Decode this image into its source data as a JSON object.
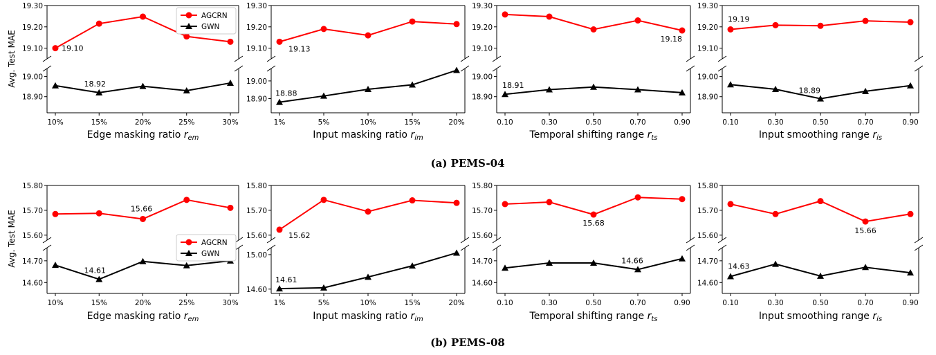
{
  "colors": {
    "agcrn": "#ff0000",
    "gwn": "#000000"
  },
  "legend": {
    "items": [
      "AGCRN",
      "GWN"
    ]
  },
  "ylabel": "Avg. Test MAE",
  "groups": [
    {
      "caption": "(a) PEMS-04"
    },
    {
      "caption": "(b) PEMS-08"
    }
  ],
  "chart_data": [
    {
      "type": "line",
      "group": 0,
      "col": 0,
      "xlabel": "Edge masking ratio r_em",
      "xlabel_main": "Edge masking ratio ",
      "xlabel_sub": "em",
      "categories": [
        "10%",
        "15%",
        "20%",
        "25%",
        "30%"
      ],
      "series": [
        {
          "name": "AGCRN",
          "values": [
            19.1,
            19.215,
            19.248,
            19.155,
            19.13
          ]
        },
        {
          "name": "GWN",
          "values": [
            18.955,
            18.92,
            18.952,
            18.93,
            18.968
          ]
        }
      ],
      "upper_ylim": [
        19.05,
        19.3
      ],
      "upper_ticks": [
        "19.10",
        "19.20",
        "19.30"
      ],
      "lower_ylim": [
        18.82,
        19.04
      ],
      "lower_ticks": [
        "18.90",
        "19.00"
      ],
      "annotations": [
        {
          "text": "19.10",
          "series": 0,
          "index": 0,
          "anchor": "start",
          "dx": 9,
          "dy": 4
        },
        {
          "text": "18.92",
          "series": 1,
          "index": 1,
          "anchor": "middle",
          "dx": -6,
          "dy": -9
        }
      ],
      "legend": "top-right"
    },
    {
      "type": "line",
      "group": 0,
      "col": 1,
      "xlabel": "Input masking ratio r_im",
      "xlabel_main": "Input masking ratio ",
      "xlabel_sub": "im",
      "categories": [
        "1%",
        "5%",
        "10%",
        "15%",
        "20%"
      ],
      "series": [
        {
          "name": "AGCRN",
          "values": [
            19.13,
            19.19,
            19.16,
            19.225,
            19.213
          ]
        },
        {
          "name": "GWN",
          "values": [
            18.88,
            18.915,
            18.953,
            18.978,
            19.06
          ]
        }
      ],
      "upper_ylim": [
        19.05,
        19.3
      ],
      "upper_ticks": [
        "19.10",
        "19.20",
        "19.30"
      ],
      "lower_ylim": [
        18.82,
        19.07
      ],
      "lower_ticks": [
        "18.90",
        "19.00"
      ],
      "annotations": [
        {
          "text": "19.13",
          "series": 0,
          "index": 0,
          "anchor": "start",
          "dx": 13,
          "dy": 14
        },
        {
          "text": "18.88",
          "series": 1,
          "index": 0,
          "anchor": "start",
          "dx": -6,
          "dy": -9
        }
      ]
    },
    {
      "type": "line",
      "group": 0,
      "col": 2,
      "xlabel": "Temporal shifting range r_ts",
      "xlabel_main": "Temporal shifting range ",
      "xlabel_sub": "ts",
      "categories": [
        "0.10",
        "0.30",
        "0.50",
        "0.70",
        "0.90"
      ],
      "series": [
        {
          "name": "AGCRN",
          "values": [
            19.258,
            19.248,
            19.188,
            19.23,
            19.183
          ]
        },
        {
          "name": "GWN",
          "values": [
            18.912,
            18.935,
            18.948,
            18.935,
            18.92
          ]
        }
      ],
      "upper_ylim": [
        19.05,
        19.3
      ],
      "upper_ticks": [
        "19.10",
        "19.20",
        "19.30"
      ],
      "lower_ylim": [
        18.82,
        19.04
      ],
      "lower_ticks": [
        "18.90",
        "19.00"
      ],
      "annotations": [
        {
          "text": "19.18",
          "series": 0,
          "index": 4,
          "anchor": "end",
          "dx": 0,
          "dy": 16
        },
        {
          "text": "18.91",
          "series": 1,
          "index": 0,
          "anchor": "start",
          "dx": -4,
          "dy": -9
        }
      ]
    },
    {
      "type": "line",
      "group": 0,
      "col": 3,
      "xlabel": "Input smoothing range r_is",
      "xlabel_main": "Input smoothing range ",
      "xlabel_sub": "is",
      "categories": [
        "0.10",
        "0.30",
        "0.50",
        "0.70",
        "0.90"
      ],
      "series": [
        {
          "name": "AGCRN",
          "values": [
            19.188,
            19.208,
            19.205,
            19.228,
            19.222
          ]
        },
        {
          "name": "GWN",
          "values": [
            18.96,
            18.937,
            18.89,
            18.927,
            18.955
          ]
        }
      ],
      "upper_ylim": [
        19.05,
        19.3
      ],
      "upper_ticks": [
        "19.10",
        "19.20",
        "19.30"
      ],
      "lower_ylim": [
        18.82,
        19.04
      ],
      "lower_ticks": [
        "18.90",
        "19.00"
      ],
      "annotations": [
        {
          "text": "19.19",
          "series": 0,
          "index": 0,
          "anchor": "start",
          "dx": -4,
          "dy": -11
        },
        {
          "text": "18.89",
          "series": 1,
          "index": 2,
          "anchor": "end",
          "dx": 0,
          "dy": -8
        }
      ]
    },
    {
      "type": "line",
      "group": 1,
      "col": 0,
      "xlabel": "Edge masking ratio r_em",
      "xlabel_main": "Edge masking ratio ",
      "xlabel_sub": "em",
      "categories": [
        "10%",
        "15%",
        "20%",
        "25%",
        "30%"
      ],
      "series": [
        {
          "name": "AGCRN",
          "values": [
            15.685,
            15.688,
            15.665,
            15.742,
            15.71
          ]
        },
        {
          "name": "GWN",
          "values": [
            14.68,
            14.615,
            14.697,
            14.678,
            14.7
          ]
        }
      ],
      "upper_ylim": [
        15.58,
        15.8
      ],
      "upper_ticks": [
        "15.60",
        "15.70",
        "15.80"
      ],
      "lower_ylim": [
        14.55,
        14.76
      ],
      "lower_ticks": [
        "14.60",
        "14.70"
      ],
      "annotations": [
        {
          "text": "15.66",
          "series": 0,
          "index": 2,
          "anchor": "middle",
          "dx": -2,
          "dy": -11
        },
        {
          "text": "14.61",
          "series": 1,
          "index": 1,
          "anchor": "middle",
          "dx": -6,
          "dy": -9
        }
      ],
      "legend": "bottom-right"
    },
    {
      "type": "line",
      "group": 1,
      "col": 1,
      "xlabel": "Input masking ratio r_im",
      "xlabel_main": "Input masking ratio ",
      "xlabel_sub": "im",
      "categories": [
        "1%",
        "5%",
        "10%",
        "15%",
        "20%"
      ],
      "series": [
        {
          "name": "AGCRN",
          "values": [
            15.622,
            15.742,
            15.695,
            15.74,
            15.73
          ]
        },
        {
          "name": "GWN",
          "values": [
            14.605,
            14.615,
            14.74,
            14.87,
            15.02
          ]
        }
      ],
      "upper_ylim": [
        15.58,
        15.8
      ],
      "upper_ticks": [
        "15.60",
        "15.70",
        "15.80"
      ],
      "lower_ylim": [
        14.55,
        15.08
      ],
      "lower_ticks": [
        "14.60",
        "15.00"
      ],
      "annotations": [
        {
          "text": "15.62",
          "series": 0,
          "index": 0,
          "anchor": "start",
          "dx": 13,
          "dy": 12
        },
        {
          "text": "14.61",
          "series": 1,
          "index": 0,
          "anchor": "start",
          "dx": -6,
          "dy": -9
        }
      ]
    },
    {
      "type": "line",
      "group": 1,
      "col": 2,
      "xlabel": "Temporal shifting range r_ts",
      "xlabel_main": "Temporal shifting range ",
      "xlabel_sub": "ts",
      "categories": [
        "0.10",
        "0.30",
        "0.50",
        "0.70",
        "0.90"
      ],
      "series": [
        {
          "name": "AGCRN",
          "values": [
            15.725,
            15.733,
            15.683,
            15.752,
            15.745
          ]
        },
        {
          "name": "GWN",
          "values": [
            14.667,
            14.69,
            14.69,
            14.66,
            14.71
          ]
        }
      ],
      "upper_ylim": [
        15.58,
        15.8
      ],
      "upper_ticks": [
        "15.60",
        "15.70",
        "15.80"
      ],
      "lower_ylim": [
        14.55,
        14.76
      ],
      "lower_ticks": [
        "14.60",
        "14.70"
      ],
      "annotations": [
        {
          "text": "15.68",
          "series": 0,
          "index": 2,
          "anchor": "middle",
          "dx": 0,
          "dy": 16
        },
        {
          "text": "14.66",
          "series": 1,
          "index": 3,
          "anchor": "middle",
          "dx": -8,
          "dy": -9
        }
      ]
    },
    {
      "type": "line",
      "group": 1,
      "col": 3,
      "xlabel": "Input smoothing range r_is",
      "xlabel_main": "Input smoothing range ",
      "xlabel_sub": "is",
      "categories": [
        "0.10",
        "0.30",
        "0.50",
        "0.70",
        "0.90"
      ],
      "series": [
        {
          "name": "AGCRN",
          "values": [
            15.725,
            15.685,
            15.737,
            15.655,
            15.685
          ]
        },
        {
          "name": "GWN",
          "values": [
            14.628,
            14.685,
            14.63,
            14.67,
            14.645
          ]
        }
      ],
      "upper_ylim": [
        15.58,
        15.8
      ],
      "upper_ticks": [
        "15.60",
        "15.70",
        "15.80"
      ],
      "lower_ylim": [
        14.55,
        14.76
      ],
      "lower_ticks": [
        "14.60",
        "14.70"
      ],
      "annotations": [
        {
          "text": "15.66",
          "series": 0,
          "index": 3,
          "anchor": "middle",
          "dx": 0,
          "dy": 17
        },
        {
          "text": "14.63",
          "series": 1,
          "index": 0,
          "anchor": "start",
          "dx": -4,
          "dy": -11
        }
      ]
    }
  ]
}
